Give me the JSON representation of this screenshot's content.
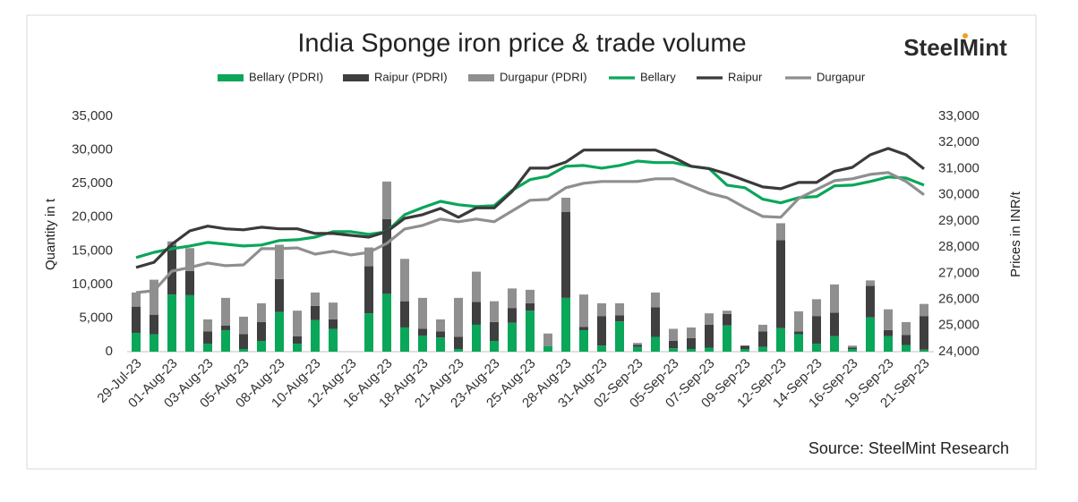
{
  "chart_data": {
    "type": "combo",
    "title": "India Sponge iron price & trade volume",
    "logo": "SteelMint",
    "source": "Source: SteelMint Research",
    "y_label": "Quantity in t",
    "y2_label": "Prices in INR/t",
    "stacked": true,
    "categories": [
      "29-Jul-23",
      null,
      "01-Aug-23",
      null,
      "03-Aug-23",
      null,
      "05-Aug-23",
      null,
      "08-Aug-23",
      null,
      "10-Aug-23",
      null,
      "12-Aug-23",
      null,
      "16-Aug-23",
      null,
      "18-Aug-23",
      null,
      "21-Aug-23",
      null,
      "23-Aug-23",
      null,
      "25-Aug-23",
      null,
      "28-Aug-23",
      null,
      "31-Aug-23",
      null,
      "02-Sep-23",
      null,
      "05-Sep-23",
      null,
      "07-Sep-23",
      null,
      "09-Sep-23",
      null,
      "12-Sep-23",
      null,
      "14-Sep-23",
      null,
      "16-Sep-23",
      null,
      "19-Sep-23",
      null,
      "21-Sep-23"
    ],
    "ylim": [
      0,
      35000
    ],
    "yticks": [
      0,
      {
        "value": 5000,
        "label": "5,000"
      },
      {
        "value": 10000,
        "label": "10,000"
      },
      {
        "value": 15000,
        "label": "15,000"
      },
      {
        "value": 20000,
        "label": "20,000"
      },
      {
        "value": 25000,
        "label": "25,000"
      },
      {
        "value": 30000,
        "label": "30,000"
      },
      {
        "value": 35000,
        "label": "35,000"
      }
    ],
    "y2lim": [
      24000,
      33000
    ],
    "y2ticks": [
      {
        "value": 24000,
        "label": "24,000"
      },
      {
        "value": 25000,
        "label": "25,000"
      },
      {
        "value": 26000,
        "label": "26,000"
      },
      {
        "value": 27000,
        "label": "27,000"
      },
      {
        "value": 28000,
        "label": "28,000"
      },
      {
        "value": 29000,
        "label": "29,000"
      },
      {
        "value": 30000,
        "label": "30,000"
      },
      {
        "value": 31000,
        "label": "31,000"
      },
      {
        "value": 32000,
        "label": "32,000"
      },
      {
        "value": 33000,
        "label": "33,000"
      }
    ],
    "series": [
      {
        "name": "Bellary (PDRI)",
        "type": "bar",
        "color": "#0aa65a",
        "values": [
          2800,
          2600,
          8500,
          8400,
          1200,
          3200,
          400,
          1600,
          5900,
          1200,
          4700,
          3400,
          0,
          5700,
          8600,
          3600,
          2400,
          2100,
          400,
          4000,
          1600,
          4300,
          6100,
          800,
          8000,
          3200,
          900,
          4500,
          700,
          2200,
          500,
          400,
          600,
          3900,
          400,
          700,
          3500,
          2600,
          1200,
          2300,
          400,
          5100,
          2300,
          1000,
          300
        ]
      },
      {
        "name": "Raipur (PDRI)",
        "type": "bar",
        "color": "#3f3f3f",
        "values": [
          3900,
          2900,
          7300,
          3600,
          1800,
          700,
          2200,
          2800,
          4900,
          1100,
          2100,
          1400,
          0,
          7000,
          11100,
          3900,
          1000,
          900,
          1800,
          3400,
          2800,
          2200,
          1100,
          0,
          12800,
          500,
          4400,
          900,
          300,
          4400,
          1100,
          1600,
          3400,
          1700,
          500,
          2300,
          13100,
          400,
          4100,
          3500,
          200,
          4700,
          900,
          1500,
          5000
        ]
      },
      {
        "name": "Durgapur (PDRI)",
        "type": "bar",
        "color": "#8f8f8f",
        "values": [
          2100,
          5200,
          600,
          3400,
          1800,
          4100,
          2600,
          2800,
          5100,
          3800,
          2000,
          2500,
          0,
          2800,
          5600,
          6300,
          4600,
          1800,
          5800,
          4500,
          3100,
          2900,
          2000,
          1900,
          2100,
          4800,
          1900,
          1800,
          300,
          2200,
          1800,
          1600,
          1700,
          500,
          0,
          1000,
          2500,
          3000,
          2500,
          4200,
          300,
          800,
          3100,
          1900,
          1800
        ]
      },
      {
        "name": "Bellary",
        "type": "line",
        "axis": "y2",
        "color": "#0aa65a",
        "values": [
          27600,
          27800,
          27940,
          28040,
          28180,
          28110,
          28040,
          28080,
          28250,
          28280,
          28380,
          28590,
          28590,
          28490,
          28590,
          29240,
          29510,
          29750,
          29620,
          29550,
          29580,
          30170,
          30580,
          30710,
          31090,
          31120,
          31020,
          31120,
          31290,
          31230,
          31230,
          31090,
          31000,
          30370,
          30270,
          29830,
          29690,
          29890,
          29930,
          30340,
          30370,
          30510,
          30680,
          30640,
          30370
        ]
      },
      {
        "name": "Raipur",
        "type": "line",
        "axis": "y2",
        "color": "#3a3a3a",
        "values": [
          27220,
          27420,
          28110,
          28620,
          28800,
          28700,
          28660,
          28760,
          28700,
          28700,
          28520,
          28520,
          28450,
          28380,
          28590,
          29100,
          29240,
          29480,
          29140,
          29500,
          29500,
          30130,
          31020,
          31020,
          31250,
          31710,
          31710,
          31710,
          31710,
          31710,
          31430,
          31090,
          31000,
          30800,
          30550,
          30300,
          30230,
          30470,
          30470,
          30900,
          31050,
          31530,
          31770,
          31530,
          30990
        ]
      },
      {
        "name": "Durgapur",
        "type": "line",
        "axis": "y2",
        "color": "#8f8f8f",
        "values": [
          26260,
          26330,
          27080,
          27220,
          27390,
          27290,
          27320,
          27940,
          27940,
          27970,
          27730,
          27840,
          27700,
          27800,
          28140,
          28690,
          28830,
          29070,
          28970,
          29070,
          28970,
          29380,
          29790,
          29820,
          30270,
          30440,
          30510,
          30510,
          30510,
          30610,
          30610,
          30340,
          30060,
          29890,
          29510,
          29170,
          29140,
          29860,
          30200,
          30540,
          30610,
          30780,
          30850,
          30510,
          30000
        ]
      }
    ]
  }
}
